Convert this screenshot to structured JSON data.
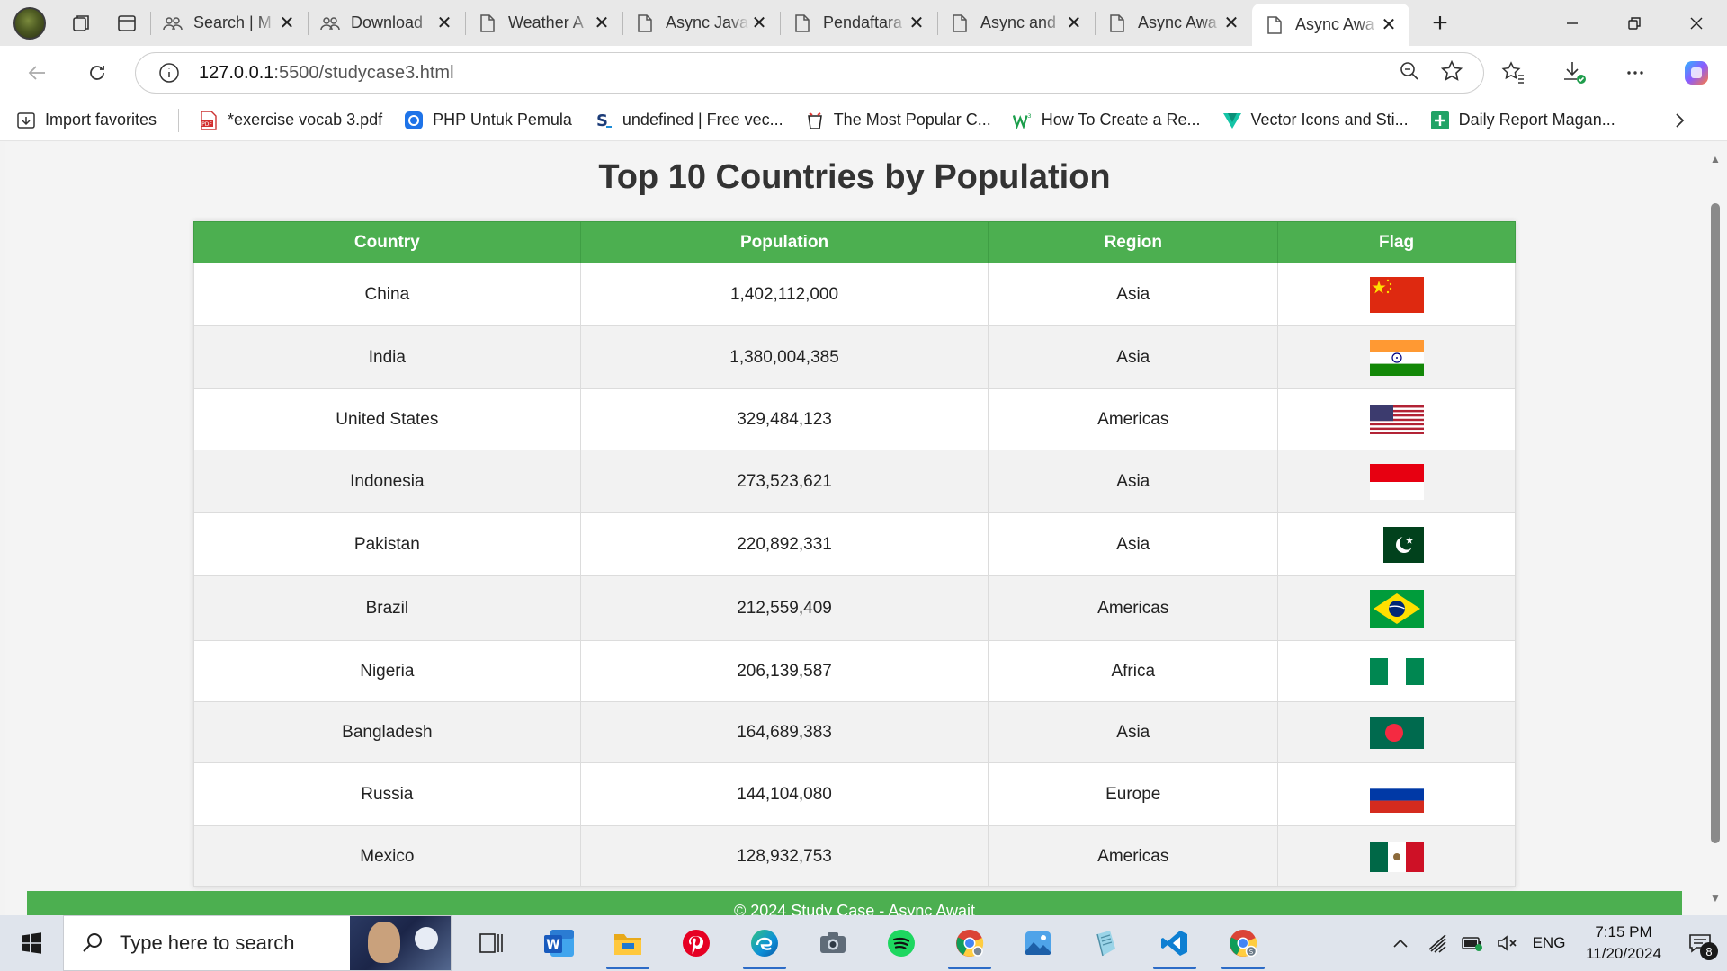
{
  "browser": {
    "tabs": [
      {
        "title": "Search | M",
        "icon": "people-icon"
      },
      {
        "title": "Download",
        "icon": "people-icon"
      },
      {
        "title": "Weather A",
        "icon": "page-icon"
      },
      {
        "title": "Async Java",
        "icon": "page-icon"
      },
      {
        "title": "Pendaftara",
        "icon": "page-icon"
      },
      {
        "title": "Async and",
        "icon": "page-icon"
      },
      {
        "title": "Async Awa",
        "icon": "page-icon"
      },
      {
        "title": "Async Awa",
        "icon": "page-icon",
        "active": true
      }
    ],
    "url": {
      "host": "127.0.0.1",
      "path": ":5500/studycase3.html"
    },
    "favorites": [
      {
        "label": "Import favorites",
        "icon": "import-icon"
      },
      {
        "label": "*exercise vocab 3.pdf",
        "icon": "pdf-icon"
      },
      {
        "label": "PHP Untuk Pemula",
        "icon": "php-icon"
      },
      {
        "label": "undefined | Free vec...",
        "icon": "s-logo-icon"
      },
      {
        "label": "The Most Popular C...",
        "icon": "cup-icon"
      },
      {
        "label": "How To Create a Re...",
        "icon": "w-logo-icon"
      },
      {
        "label": "Vector Icons and Sti...",
        "icon": "v-logo-icon"
      },
      {
        "label": "Daily Report Magan...",
        "icon": "plus-doc-icon"
      }
    ]
  },
  "page": {
    "title": "Top 10 Countries by Population",
    "columns": [
      "Country",
      "Population",
      "Region",
      "Flag"
    ],
    "rows": [
      {
        "country": "China",
        "population": "1,402,112,000",
        "region": "Asia",
        "flag": "china-flag"
      },
      {
        "country": "India",
        "population": "1,380,004,385",
        "region": "Asia",
        "flag": "india-flag"
      },
      {
        "country": "United States",
        "population": "329,484,123",
        "region": "Americas",
        "flag": "usa-flag"
      },
      {
        "country": "Indonesia",
        "population": "273,523,621",
        "region": "Asia",
        "flag": "indonesia-flag"
      },
      {
        "country": "Pakistan",
        "population": "220,892,331",
        "region": "Asia",
        "flag": "pakistan-flag"
      },
      {
        "country": "Brazil",
        "population": "212,559,409",
        "region": "Americas",
        "flag": "brazil-flag"
      },
      {
        "country": "Nigeria",
        "population": "206,139,587",
        "region": "Africa",
        "flag": "nigeria-flag"
      },
      {
        "country": "Bangladesh",
        "population": "164,689,383",
        "region": "Asia",
        "flag": "bangladesh-flag"
      },
      {
        "country": "Russia",
        "population": "144,104,080",
        "region": "Europe",
        "flag": "russia-flag"
      },
      {
        "country": "Mexico",
        "population": "128,932,753",
        "region": "Americas",
        "flag": "mexico-flag"
      }
    ],
    "footer": "© 2024 Study Case - Async Await"
  },
  "taskbar": {
    "search_placeholder": "Type here to search",
    "apps": [
      "task-view-icon",
      "word-icon",
      "file-explorer-icon",
      "pinterest-icon",
      "edge-icon",
      "camera-icon",
      "spotify-icon",
      "chrome-icon",
      "photos-icon",
      "notepad-icon",
      "vscode-icon",
      "chrome-profile-icon"
    ],
    "language": "ENG",
    "time": "7:15 PM",
    "date": "11/20/2024",
    "notification_count": "8"
  },
  "colors": {
    "header_green": "#4caf50",
    "accent_blue": "#2c6bc7"
  }
}
